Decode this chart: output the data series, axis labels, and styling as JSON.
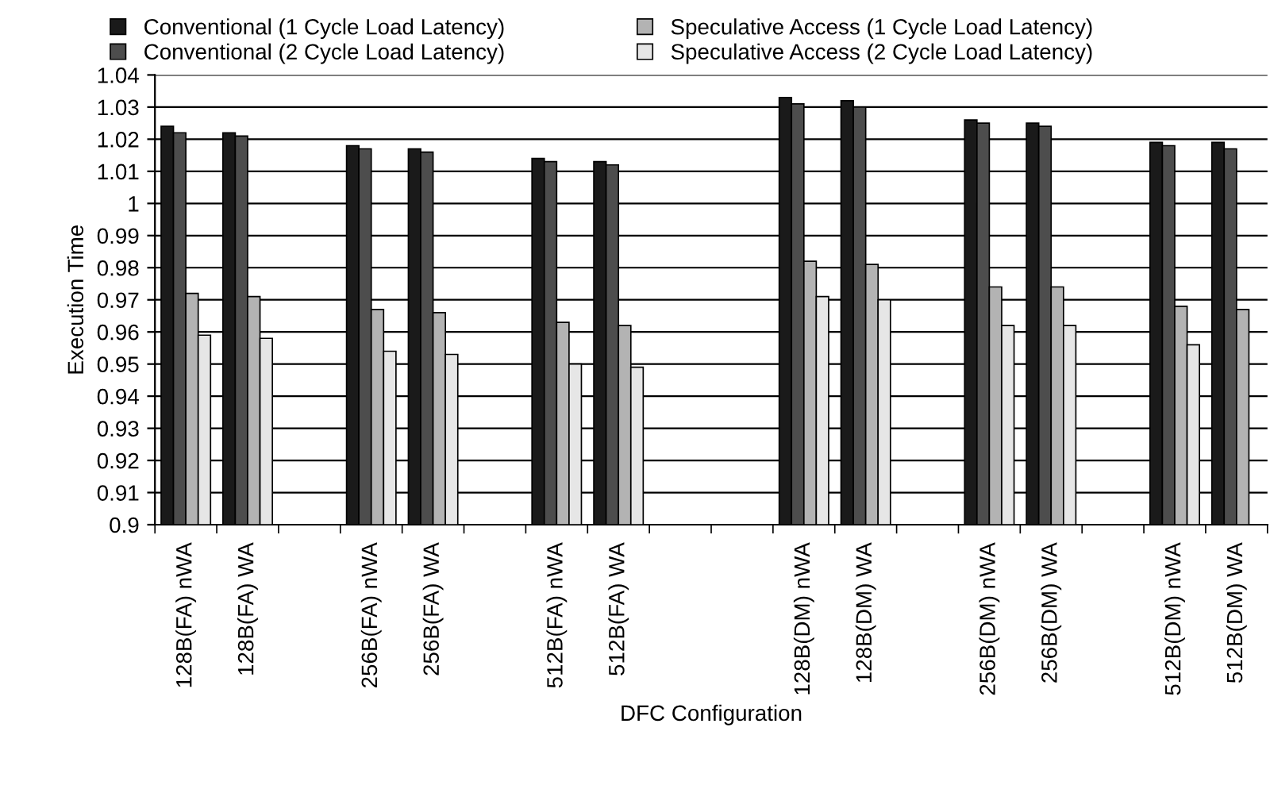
{
  "chart_data": {
    "type": "bar",
    "xlabel": "DFC Configuration",
    "ylabel": "Execution Time",
    "categories": [
      "128B(FA) nWA",
      "128B(FA) WA",
      null,
      "256B(FA) nWA",
      "256B(FA) WA",
      null,
      "512B(FA) nWA",
      "512B(FA) WA",
      null,
      null,
      "128B(DM) nWA",
      "128B(DM) WA",
      null,
      "256B(DM) nWA",
      "256B(DM) WA",
      null,
      "512B(DM) nWA",
      "512B(DM) WA"
    ],
    "series": [
      {
        "name": "Conventional (1 Cycle Load Latency)",
        "color": "#1a1a1a",
        "values": [
          1.024,
          1.022,
          null,
          1.018,
          1.017,
          null,
          1.014,
          1.013,
          null,
          null,
          1.033,
          1.032,
          null,
          1.026,
          1.025,
          null,
          1.019,
          1.019
        ]
      },
      {
        "name": "Conventional (2 Cycle Load Latency)",
        "color": "#4d4d4d",
        "values": [
          1.022,
          1.021,
          null,
          1.017,
          1.016,
          null,
          1.013,
          1.012,
          null,
          null,
          1.031,
          1.03,
          null,
          1.025,
          1.024,
          null,
          1.018,
          1.017
        ]
      },
      {
        "name": "Speculative Access (1 Cycle Load Latency)",
        "color": "#b3b3b3",
        "values": [
          0.972,
          0.971,
          null,
          0.967,
          0.966,
          null,
          0.963,
          0.962,
          null,
          null,
          0.982,
          0.981,
          null,
          0.974,
          0.974,
          null,
          0.968,
          0.967
        ]
      },
      {
        "name": "Speculative Access (2 Cycle Load Latency)",
        "color": "#e6e6e6",
        "values": [
          0.959,
          0.958,
          null,
          0.954,
          0.953,
          null,
          0.95,
          0.949,
          null,
          null,
          0.971,
          0.97,
          null,
          0.962,
          0.962,
          null,
          0.956,
          null
        ]
      }
    ],
    "ylim": [
      0.9,
      1.04
    ],
    "yticks": [
      {
        "value": 0.9,
        "label": "0.9"
      },
      0.91,
      0.92,
      0.93,
      0.94,
      0.95,
      0.96,
      0.97,
      0.98,
      0.99,
      {
        "value": 1.0,
        "label": "1"
      },
      1.01,
      1.02,
      1.03,
      1.04
    ],
    "grid": "y",
    "legend": "top"
  }
}
